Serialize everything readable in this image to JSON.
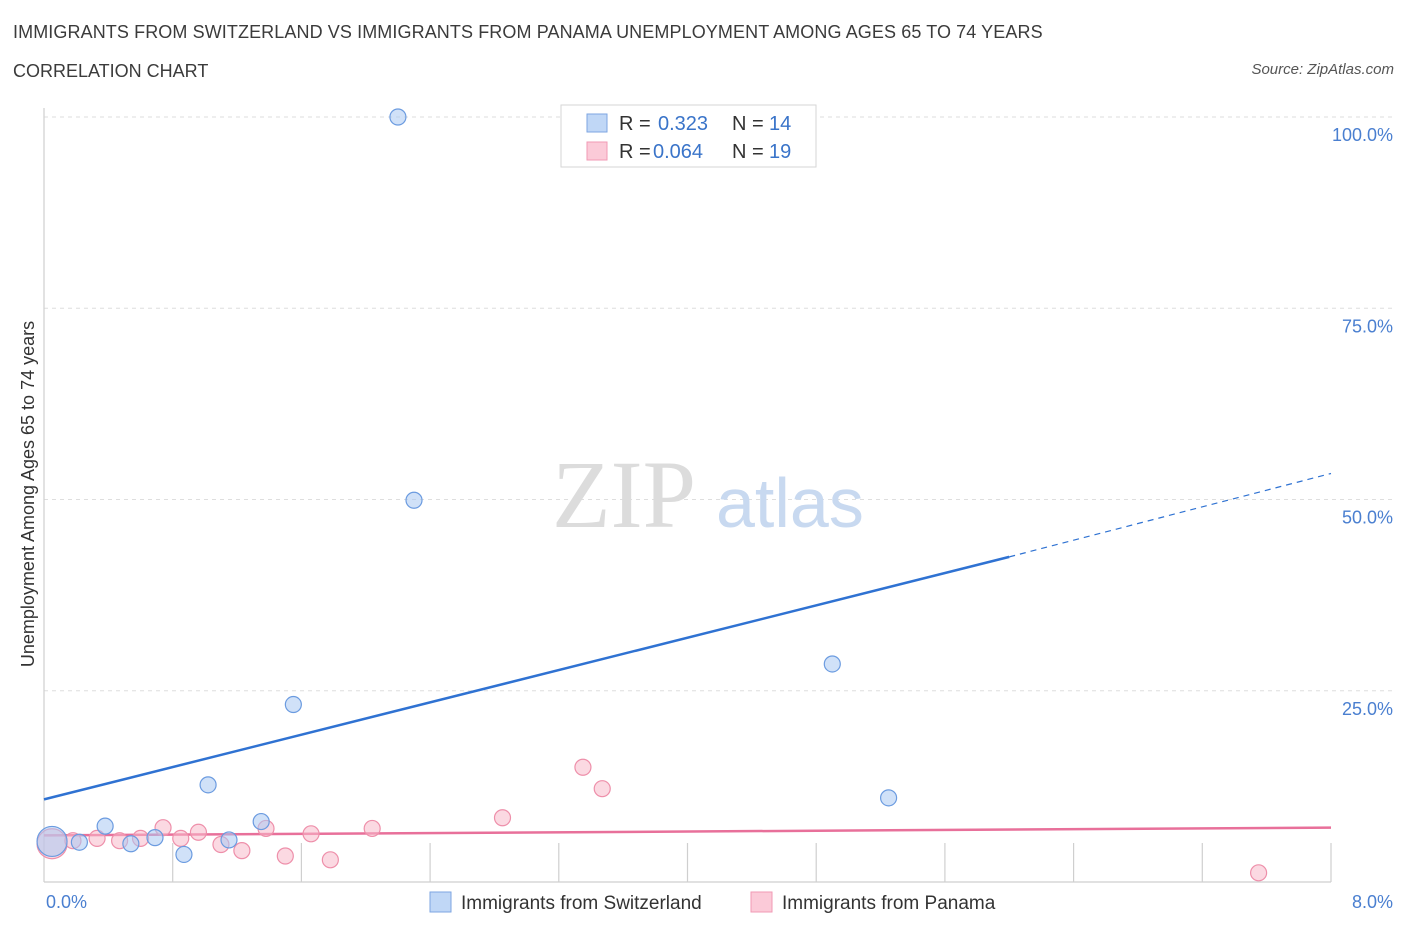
{
  "header": {
    "title": "IMMIGRANTS FROM SWITZERLAND VS IMMIGRANTS FROM PANAMA UNEMPLOYMENT AMONG AGES 65 TO 74 YEARS",
    "subtitle": "CORRELATION CHART",
    "source": "Source: ZipAtlas.com"
  },
  "watermark": {
    "zip": "ZIP",
    "atlas": "atlas"
  },
  "legend": {
    "r_label": "R =",
    "n_label": "N =",
    "rows": [
      {
        "r": "0.323",
        "n": "14"
      },
      {
        "r": "0.064",
        "n": "19"
      }
    ]
  },
  "chart_data": {
    "type": "scatter",
    "title": "IMMIGRANTS FROM SWITZERLAND VS IMMIGRANTS FROM PANAMA UNEMPLOYMENT AMONG AGES 65 TO 74 YEARS",
    "subtitle": "CORRELATION CHART",
    "xlabel": "",
    "ylabel": "Unemployment Among Ages 65 to 74 years",
    "xlim": [
      0,
      8
    ],
    "ylim": [
      0,
      100
    ],
    "x_tick_labels": [
      "0.0%",
      "8.0%"
    ],
    "y_tick_labels": [
      "25.0%",
      "50.0%",
      "75.0%",
      "100.0%"
    ],
    "y_ticks": [
      25,
      50,
      75,
      100
    ],
    "x_minor_ticks": [
      0.8,
      1.6,
      2.4,
      3.2,
      4.0,
      4.8,
      5.6,
      6.4,
      7.2,
      8.0
    ],
    "grid": true,
    "series": [
      {
        "name": "Immigrants from Switzerland",
        "color": "#a9c8f2",
        "stroke": "#6b9be0",
        "line_color": "#2f72d2",
        "trend": {
          "x0": 0,
          "y0": 10.8,
          "x1": 6.0,
          "y1": 42.5,
          "dash_to_x": 8.0,
          "dash_to_y": 53.4
        },
        "points": [
          {
            "x": 0.05,
            "y": 5.3,
            "big": true
          },
          {
            "x": 0.22,
            "y": 5.2
          },
          {
            "x": 0.38,
            "y": 7.3
          },
          {
            "x": 0.54,
            "y": 5.0
          },
          {
            "x": 0.69,
            "y": 5.8
          },
          {
            "x": 0.87,
            "y": 3.6
          },
          {
            "x": 1.02,
            "y": 12.7
          },
          {
            "x": 1.15,
            "y": 5.5
          },
          {
            "x": 1.35,
            "y": 7.9
          },
          {
            "x": 1.55,
            "y": 23.2
          },
          {
            "x": 2.2,
            "y": 100.0
          },
          {
            "x": 2.3,
            "y": 49.9
          },
          {
            "x": 4.9,
            "y": 28.5
          },
          {
            "x": 5.25,
            "y": 11.0
          }
        ]
      },
      {
        "name": "Immigrants from Panama",
        "color": "#f7b9cb",
        "stroke": "#ee8faa",
        "line_color": "#e8709a",
        "trend": {
          "x0": 0,
          "y0": 6.1,
          "x1": 8.0,
          "y1": 7.1
        },
        "points": [
          {
            "x": 0.05,
            "y": 5.0,
            "big": true
          },
          {
            "x": 0.18,
            "y": 5.4
          },
          {
            "x": 0.33,
            "y": 5.7
          },
          {
            "x": 0.47,
            "y": 5.4
          },
          {
            "x": 0.6,
            "y": 5.7
          },
          {
            "x": 0.74,
            "y": 7.1
          },
          {
            "x": 0.85,
            "y": 5.7
          },
          {
            "x": 0.96,
            "y": 6.5
          },
          {
            "x": 1.1,
            "y": 4.9
          },
          {
            "x": 1.23,
            "y": 4.1
          },
          {
            "x": 1.38,
            "y": 7.0
          },
          {
            "x": 1.5,
            "y": 3.4
          },
          {
            "x": 1.66,
            "y": 6.3
          },
          {
            "x": 1.78,
            "y": 2.9
          },
          {
            "x": 2.04,
            "y": 7.0
          },
          {
            "x": 2.85,
            "y": 8.4
          },
          {
            "x": 3.35,
            "y": 15.0
          },
          {
            "x": 3.47,
            "y": 12.2
          },
          {
            "x": 7.55,
            "y": 1.2
          }
        ]
      }
    ]
  }
}
